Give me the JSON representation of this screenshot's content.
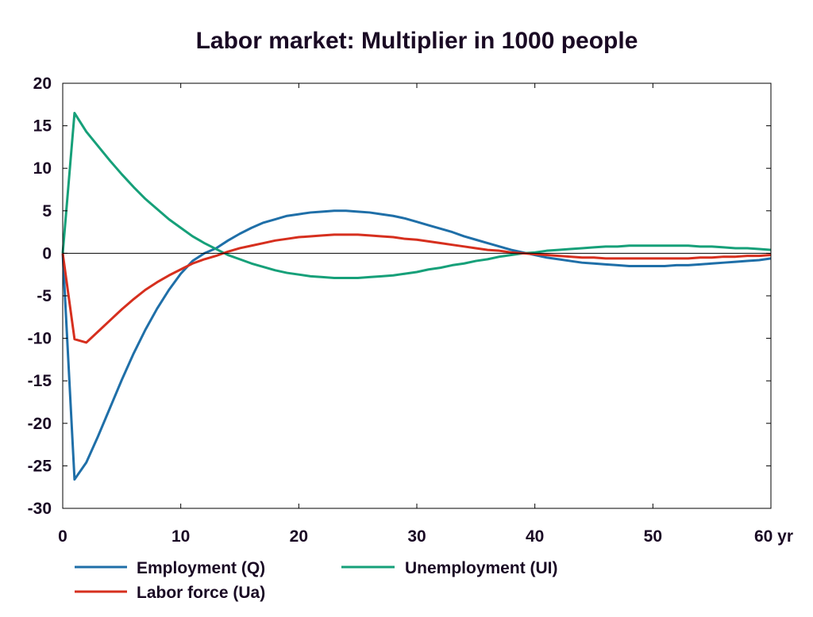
{
  "chart_data": {
    "type": "line",
    "title": "Labor market: Multiplier in 1000 people",
    "xlabel": "",
    "ylabel": "",
    "xlim": [
      0,
      60
    ],
    "ylim": [
      -30,
      20
    ],
    "x_tick_labels": [
      "0",
      "10",
      "20",
      "30",
      "40",
      "50",
      "60 yr"
    ],
    "y_tick_labels": [
      "20",
      "15",
      "10",
      "5",
      "0",
      "-5",
      "-10",
      "-15",
      "-20",
      "-25",
      "-30"
    ],
    "grid": false,
    "legend_position": "bottom",
    "x": [
      0,
      1,
      2,
      3,
      4,
      5,
      6,
      7,
      8,
      9,
      10,
      11,
      12,
      13,
      14,
      15,
      16,
      17,
      18,
      19,
      20,
      21,
      22,
      23,
      24,
      25,
      26,
      27,
      28,
      29,
      30,
      31,
      32,
      33,
      34,
      35,
      36,
      37,
      38,
      39,
      40,
      41,
      42,
      43,
      44,
      45,
      46,
      47,
      48,
      49,
      50,
      51,
      52,
      53,
      54,
      55,
      56,
      57,
      58,
      59,
      60
    ],
    "series": [
      {
        "name": "Employment (Q)",
        "color": "#1f6fa8",
        "values": [
          0,
          -26.6,
          -24.6,
          -21.5,
          -18.2,
          -14.9,
          -11.8,
          -9.0,
          -6.5,
          -4.3,
          -2.4,
          -0.9,
          0.0,
          0.6,
          1.5,
          2.3,
          3.0,
          3.6,
          4.0,
          4.4,
          4.6,
          4.8,
          4.9,
          5.0,
          5.0,
          4.9,
          4.8,
          4.6,
          4.4,
          4.1,
          3.7,
          3.3,
          2.9,
          2.5,
          2.0,
          1.6,
          1.2,
          0.8,
          0.4,
          0.1,
          -0.2,
          -0.5,
          -0.7,
          -0.9,
          -1.1,
          -1.2,
          -1.3,
          -1.4,
          -1.5,
          -1.5,
          -1.5,
          -1.5,
          -1.4,
          -1.4,
          -1.3,
          -1.2,
          -1.1,
          -1.0,
          -0.9,
          -0.8,
          -0.6
        ]
      },
      {
        "name": "Unemployment (UI)",
        "color": "#16a079",
        "values": [
          0,
          16.5,
          14.3,
          12.6,
          10.9,
          9.3,
          7.8,
          6.4,
          5.2,
          4.0,
          3.0,
          2.0,
          1.2,
          0.5,
          -0.2,
          -0.7,
          -1.2,
          -1.6,
          -2.0,
          -2.3,
          -2.5,
          -2.7,
          -2.8,
          -2.9,
          -2.9,
          -2.9,
          -2.8,
          -2.7,
          -2.6,
          -2.4,
          -2.2,
          -1.9,
          -1.7,
          -1.4,
          -1.2,
          -0.9,
          -0.7,
          -0.4,
          -0.2,
          0.0,
          0.1,
          0.3,
          0.4,
          0.5,
          0.6,
          0.7,
          0.8,
          0.8,
          0.9,
          0.9,
          0.9,
          0.9,
          0.9,
          0.9,
          0.8,
          0.8,
          0.7,
          0.6,
          0.6,
          0.5,
          0.4
        ]
      },
      {
        "name": "Labor force (Ua)",
        "color": "#d62f1e",
        "values": [
          0,
          -10.1,
          -10.5,
          -9.2,
          -7.9,
          -6.6,
          -5.4,
          -4.3,
          -3.4,
          -2.6,
          -1.9,
          -1.2,
          -0.7,
          -0.3,
          0.2,
          0.6,
          0.9,
          1.2,
          1.5,
          1.7,
          1.9,
          2.0,
          2.1,
          2.2,
          2.2,
          2.2,
          2.1,
          2.0,
          1.9,
          1.7,
          1.6,
          1.4,
          1.2,
          1.0,
          0.8,
          0.6,
          0.4,
          0.3,
          0.1,
          0.0,
          -0.1,
          -0.2,
          -0.3,
          -0.4,
          -0.5,
          -0.5,
          -0.6,
          -0.6,
          -0.6,
          -0.6,
          -0.6,
          -0.6,
          -0.6,
          -0.6,
          -0.5,
          -0.5,
          -0.4,
          -0.4,
          -0.3,
          -0.3,
          -0.2
        ]
      }
    ]
  }
}
